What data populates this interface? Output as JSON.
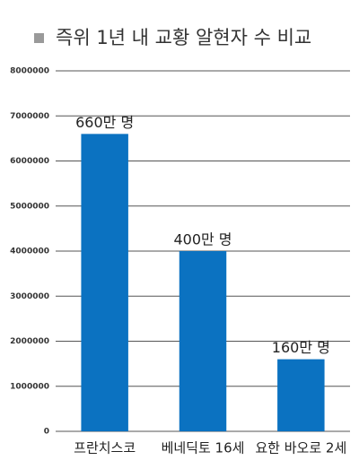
{
  "chart_data": {
    "type": "bar",
    "title": "즉위 1년 내 교황 알현자 수 비교",
    "categories": [
      "프란치스코",
      "베네딕토 16세",
      "요한 바오로 2세"
    ],
    "values": [
      6600000,
      4000000,
      1600000
    ],
    "value_labels": [
      "660만 명",
      "400만 명",
      "160만 명"
    ],
    "color": "#0b72c1",
    "ylim": [
      0,
      8000000
    ],
    "yticks": [
      0,
      1000000,
      2000000,
      3000000,
      4000000,
      5000000,
      6000000,
      7000000,
      8000000
    ],
    "grid": true
  }
}
